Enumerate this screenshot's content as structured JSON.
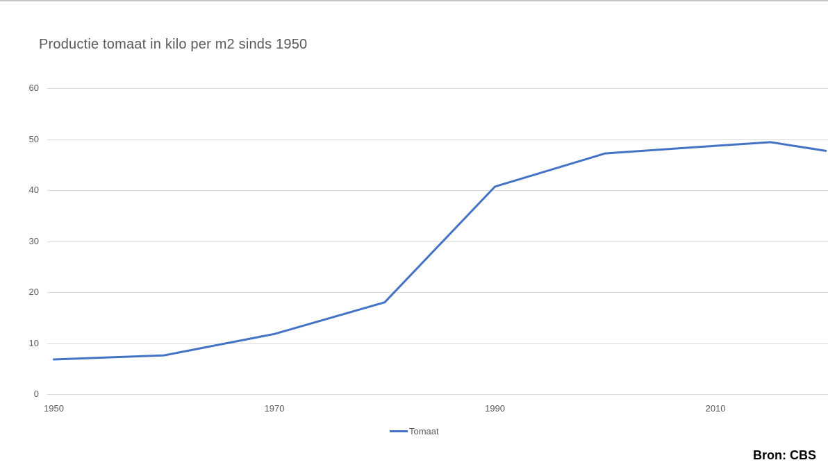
{
  "window": {
    "top_border_color": "#c9c9c9"
  },
  "chart": {
    "title": "Productie tomaat in kilo per m2 sinds 1950",
    "source": "Bron: CBS",
    "legend": {
      "label": "Tomaat"
    }
  },
  "chart_data": {
    "type": "line",
    "title": "Productie tomaat in kilo per m2 sinds 1950",
    "xlabel": "",
    "ylabel": "",
    "x_ticks": [
      "1950",
      "1970",
      "1990",
      "2010"
    ],
    "x_tick_values": [
      1950,
      1970,
      1990,
      2010
    ],
    "y_ticks": [
      "0",
      "10",
      "20",
      "30",
      "40",
      "50",
      "60"
    ],
    "y_tick_values": [
      0,
      10,
      20,
      30,
      40,
      50,
      60
    ],
    "xlim": [
      1949.4,
      2020.2
    ],
    "ylim": [
      0,
      60
    ],
    "grid": "horizontal",
    "legend_position": "bottom-center",
    "colors": {
      "line": "#4472c4",
      "gridline": "#d9d9d9",
      "axis_text": "#595959",
      "title_text": "#595959",
      "source_text": "#000000"
    },
    "series": [
      {
        "name": "Tomaat",
        "color": "#4472c4",
        "x": [
          1950,
          1960,
          1970,
          1980,
          1990,
          2000,
          2010,
          2015,
          2020
        ],
        "values": [
          6.8,
          7.6,
          11.8,
          18.0,
          40.7,
          47.2,
          48.7,
          49.4,
          47.7
        ]
      }
    ]
  }
}
